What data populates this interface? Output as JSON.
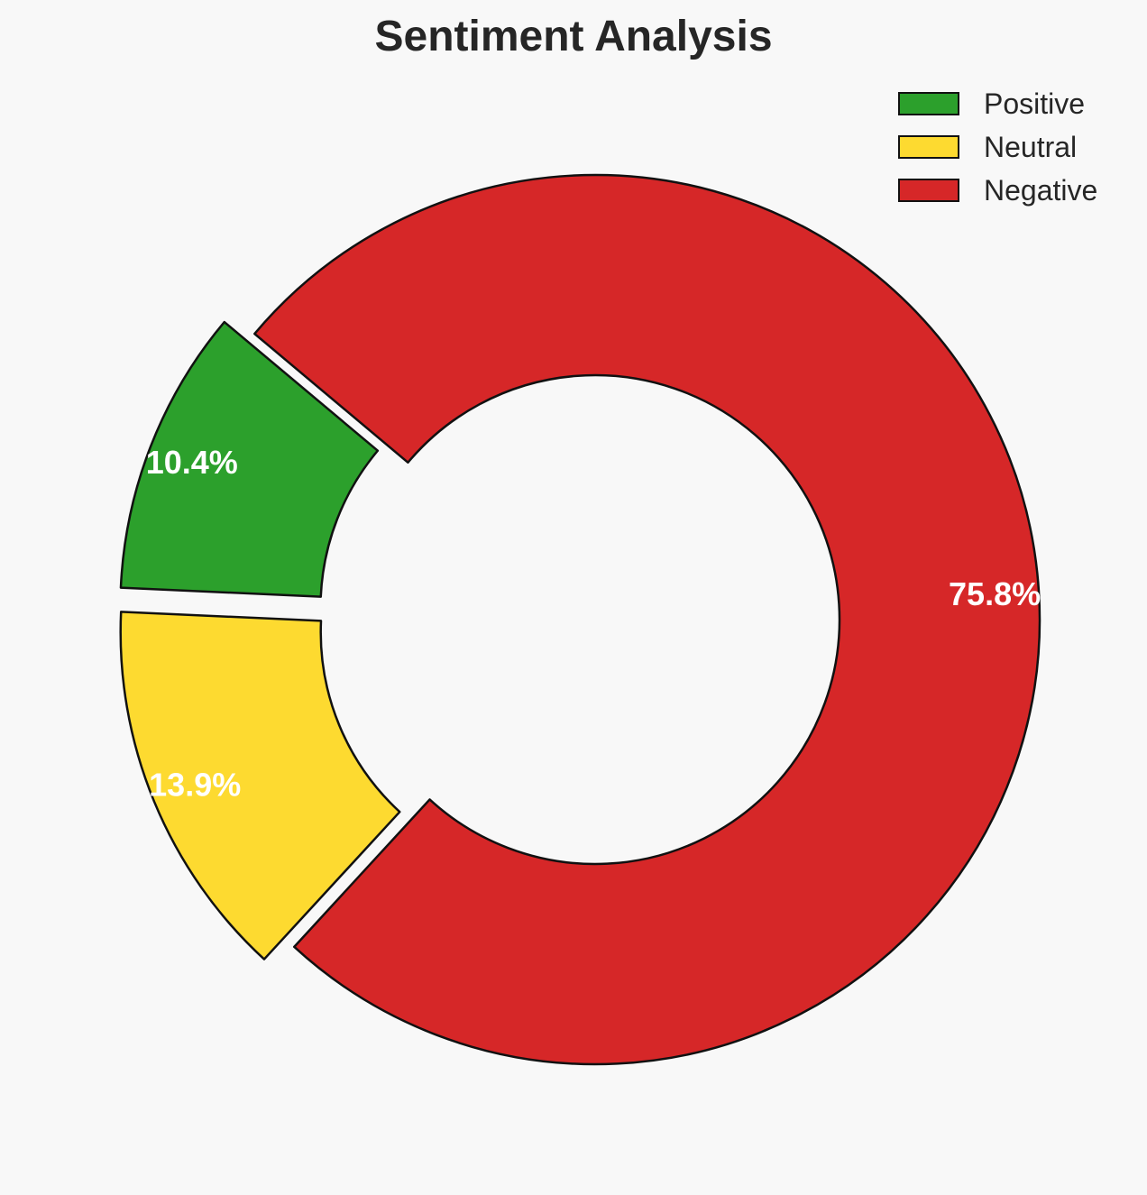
{
  "chart_data": {
    "type": "pie",
    "variant": "donut",
    "title": "Sentiment Analysis",
    "categories": [
      "Positive",
      "Neutral",
      "Negative"
    ],
    "values": [
      10.4,
      13.9,
      75.8
    ],
    "labels": [
      "10.4%",
      "13.9%",
      "75.8%"
    ],
    "colors": [
      "#2ca02c",
      "#fdda30",
      "#d62728"
    ],
    "exploded": [
      true,
      true,
      false
    ],
    "start_angle_deg": 140,
    "direction": "counterclockwise",
    "legend": {
      "position": "top-right",
      "entries": [
        "Positive",
        "Neutral",
        "Negative"
      ]
    }
  }
}
